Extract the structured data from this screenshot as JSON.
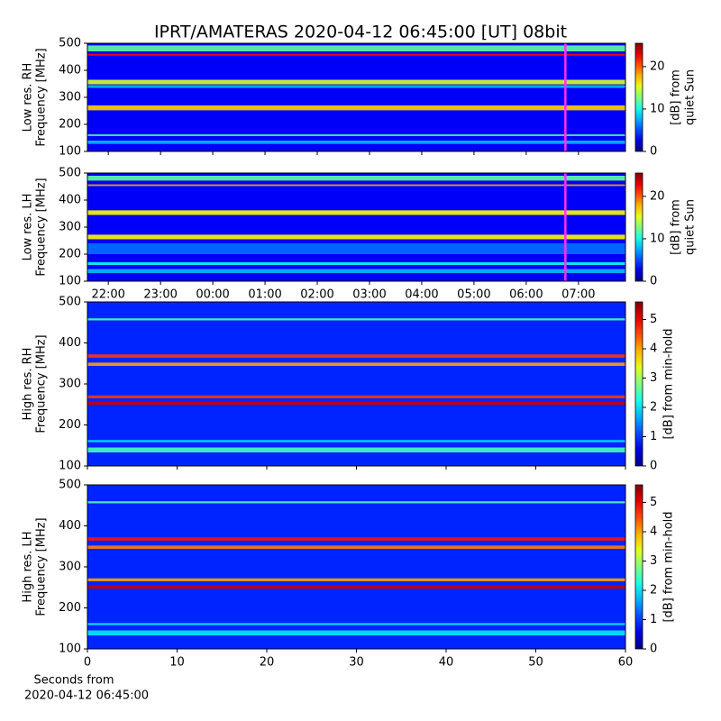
{
  "title": "IPRT/AMATERAS 2020-04-12 06:45:00 [UT]   08bit",
  "chart_data": [
    {
      "type": "heatmap",
      "ylabel": [
        "Low res. RH",
        "Frequency [MHz]"
      ],
      "ylim": [
        100,
        500
      ],
      "yticks": [
        100,
        200,
        300,
        400,
        500
      ],
      "xlim": [
        21.6,
        31.9
      ],
      "xticks": [
        22,
        23,
        24,
        25,
        26,
        27,
        28,
        29,
        30,
        31
      ],
      "xtick_labels": false,
      "colormap": "jet",
      "background_level": 3,
      "bands": [
        {
          "from": 470,
          "to": 492,
          "level": 12
        },
        {
          "from": 454,
          "to": 461,
          "level": 22
        },
        {
          "from": 348,
          "to": 365,
          "level": 15
        },
        {
          "from": 335,
          "to": 345,
          "level": 8
        },
        {
          "from": 252,
          "to": 270,
          "level": 17
        },
        {
          "from": 157,
          "to": 163,
          "level": 12
        },
        {
          "from": 128,
          "to": 140,
          "level": 8
        }
      ],
      "cursor": {
        "x": 30.75,
        "color": "#ff30ff"
      },
      "colorbar": {
        "label": [
          "[dB] from",
          "quiet Sun"
        ],
        "lim": [
          0,
          25.5
        ],
        "ticks": [
          0,
          10,
          20
        ]
      }
    },
    {
      "type": "heatmap",
      "ylabel": [
        "Low res. LH",
        "Frequency [MHz]"
      ],
      "ylim": [
        100,
        500
      ],
      "yticks": [
        100,
        200,
        300,
        400,
        500
      ],
      "xlim": [
        21.6,
        31.9
      ],
      "xticks": [
        {
          "value": 22,
          "label": "22:00"
        },
        {
          "value": 23,
          "label": "23:00"
        },
        {
          "value": 24,
          "label": "00:00"
        },
        {
          "value": 25,
          "label": "01:00"
        },
        {
          "value": 26,
          "label": "02:00"
        },
        {
          "value": 27,
          "label": "03:00"
        },
        {
          "value": 28,
          "label": "04:00"
        },
        {
          "value": 29,
          "label": "05:00"
        },
        {
          "value": 30,
          "label": "06:00"
        },
        {
          "value": 31,
          "label": "07:00"
        }
      ],
      "xtick_labels": true,
      "colormap": "jet",
      "background_level": 3,
      "bands": [
        {
          "from": 472,
          "to": 490,
          "level": 12
        },
        {
          "from": 452,
          "to": 458,
          "level": 18
        },
        {
          "from": 345,
          "to": 362,
          "level": 16
        },
        {
          "from": 255,
          "to": 272,
          "level": 16
        },
        {
          "from": 200,
          "to": 240,
          "level": 6
        },
        {
          "from": 160,
          "to": 170,
          "level": 10
        },
        {
          "from": 130,
          "to": 145,
          "level": 8
        }
      ],
      "cursor": {
        "x": 30.75,
        "color": "#ff30ff"
      },
      "colorbar": {
        "label": [
          "[dB] from",
          "quiet Sun"
        ],
        "lim": [
          0,
          25.5
        ],
        "ticks": [
          0,
          10,
          20
        ]
      }
    },
    {
      "type": "heatmap",
      "ylabel": [
        "High res. RH",
        "Frequency [MHz]"
      ],
      "ylim": [
        100,
        500
      ],
      "yticks": [
        100,
        200,
        300,
        400,
        500
      ],
      "xlim": [
        0,
        60
      ],
      "xticks": [
        0,
        10,
        20,
        30,
        40,
        50,
        60
      ],
      "xtick_labels": false,
      "colormap": "jet",
      "background_level": 0.9,
      "bands": [
        {
          "from": 455,
          "to": 460,
          "level": 2.5
        },
        {
          "from": 364,
          "to": 372,
          "level": 4.6
        },
        {
          "from": 344,
          "to": 352,
          "level": 4
        },
        {
          "from": 265,
          "to": 272,
          "level": 4.6
        },
        {
          "from": 249,
          "to": 257,
          "level": 5.2
        },
        {
          "from": 158,
          "to": 163,
          "level": 2
        },
        {
          "from": 133,
          "to": 145,
          "level": 2.5
        }
      ],
      "colorbar": {
        "label": [
          "[dB] from min-hold"
        ],
        "lim": [
          0,
          5.6
        ],
        "ticks": [
          0,
          1,
          2,
          3,
          4,
          5
        ]
      }
    },
    {
      "type": "heatmap",
      "ylabel": [
        "High res. LH",
        "Frequency [MHz]"
      ],
      "ylim": [
        100,
        500
      ],
      "yticks": [
        100,
        200,
        300,
        400,
        500
      ],
      "xlim": [
        0,
        60
      ],
      "xticks": [
        0,
        10,
        20,
        30,
        40,
        50,
        60
      ],
      "xtick_labels": true,
      "xlabel": [
        "Seconds from",
        "2020-04-12 06:45:00"
      ],
      "colormap": "jet",
      "background_level": 0.9,
      "bands": [
        {
          "from": 455,
          "to": 460,
          "level": 2.5
        },
        {
          "from": 364,
          "to": 372,
          "level": 4.8
        },
        {
          "from": 344,
          "to": 352,
          "level": 4.2
        },
        {
          "from": 265,
          "to": 272,
          "level": 4
        },
        {
          "from": 247,
          "to": 255,
          "level": 5.2
        },
        {
          "from": 158,
          "to": 163,
          "level": 2
        },
        {
          "from": 133,
          "to": 145,
          "level": 2
        }
      ],
      "colorbar": {
        "label": [
          "[dB] from min-hold"
        ],
        "lim": [
          0,
          5.6
        ],
        "ticks": [
          0,
          1,
          2,
          3,
          4,
          5
        ]
      }
    }
  ]
}
